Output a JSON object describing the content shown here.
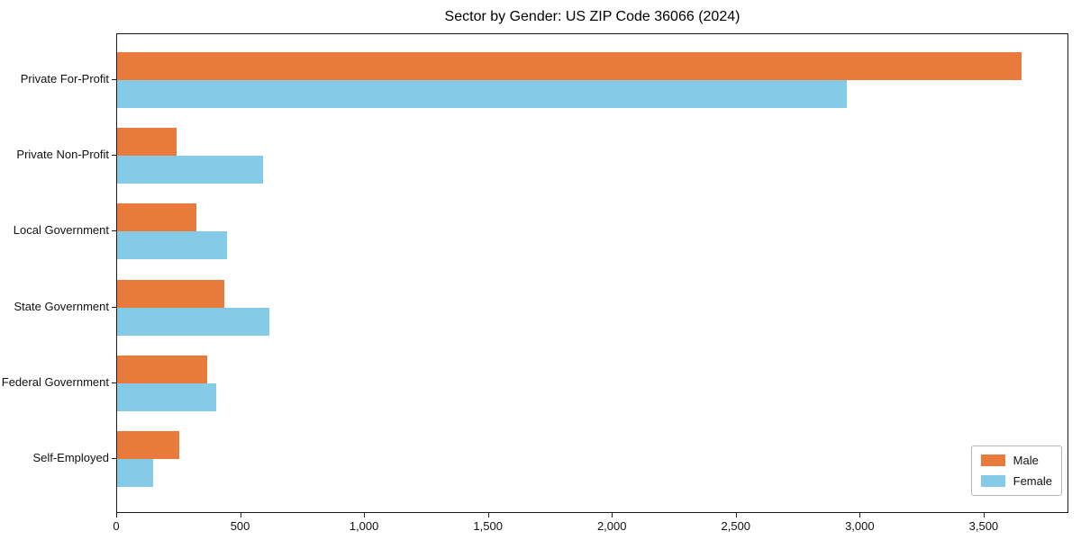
{
  "title": "Sector by Gender: US ZIP Code 36066 (2024)",
  "legend": {
    "items": [
      {
        "label": "Male",
        "color": "#e87a3b"
      },
      {
        "label": "Female",
        "color": "#85cbe8"
      }
    ],
    "position": "lower right"
  },
  "colors": {
    "male": "#e87a3b",
    "female": "#85cbe8",
    "axis": "#1c1c1c",
    "legend_border": "#b5b5b5",
    "background": "#ffffff"
  },
  "chart_data": {
    "type": "bar",
    "orientation": "horizontal",
    "title": "Sector by Gender: US ZIP Code 36066 (2024)",
    "xlabel": "",
    "ylabel": "",
    "categories": [
      "Private For-Profit",
      "Private Non-Profit",
      "Local Government",
      "State Government",
      "Federal Government",
      "Self-Employed"
    ],
    "series": [
      {
        "name": "Male",
        "color": "#e87a3b",
        "values": [
          3655,
          240,
          320,
          435,
          365,
          250
        ]
      },
      {
        "name": "Female",
        "color": "#85cbe8",
        "values": [
          2950,
          590,
          445,
          615,
          400,
          145
        ]
      }
    ],
    "xlim": [
      0,
      3842
    ],
    "xticks": [
      0,
      500,
      1000,
      1500,
      2000,
      2500,
      3000,
      3500
    ],
    "xtick_labels": [
      "0",
      "500",
      "1,000",
      "1,500",
      "2,000",
      "2,500",
      "3,000",
      "3,500"
    ],
    "grid": false,
    "legend_position": "lower right"
  }
}
